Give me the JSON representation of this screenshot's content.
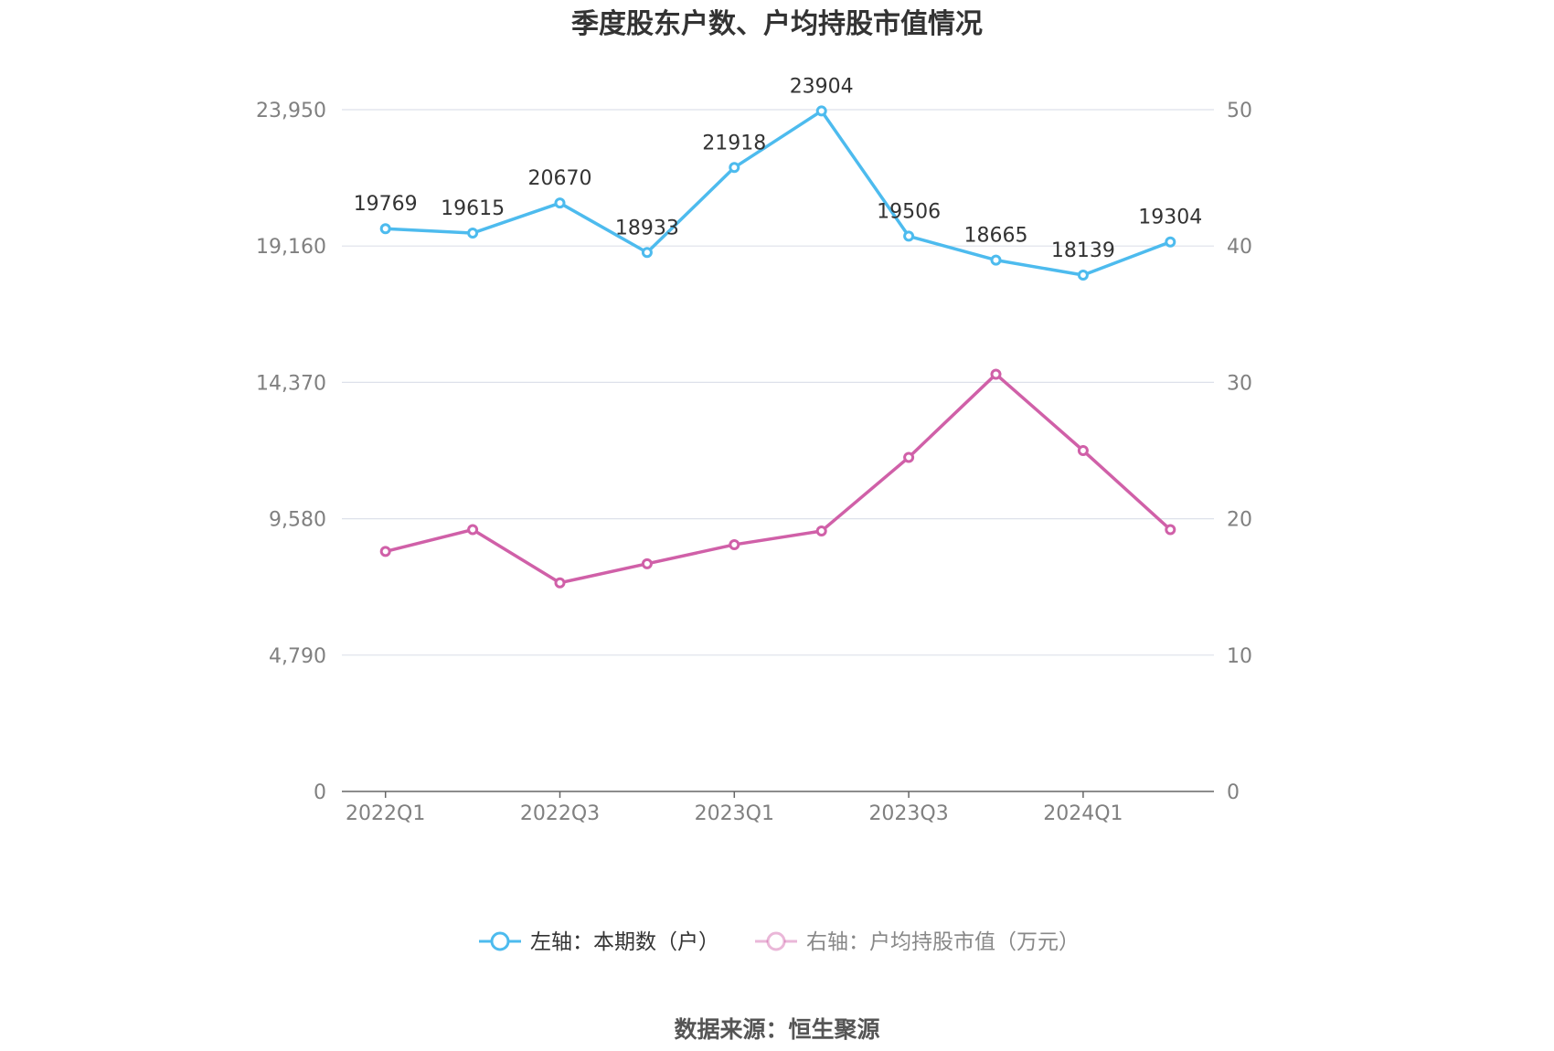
{
  "chart_data": {
    "type": "line",
    "title": "季度股东户数、户均持股市值情况",
    "x": [
      "2022Q1",
      "2022Q2",
      "2022Q3",
      "2022Q4",
      "2023Q1",
      "2023Q2",
      "2023Q3",
      "2023Q4",
      "2024Q1",
      "2024Q2"
    ],
    "x_tick_labels": [
      "2022Q1",
      "2022Q3",
      "2023Q1",
      "2023Q3",
      "2024Q1"
    ],
    "y_left": {
      "ticks": [
        "0",
        "4,790",
        "9,580",
        "14,370",
        "19,160",
        "23,950"
      ],
      "range": [
        0,
        23950
      ]
    },
    "y_right": {
      "ticks": [
        "0",
        "10",
        "20",
        "30",
        "40",
        "50"
      ],
      "range": [
        0,
        50
      ]
    },
    "series": [
      {
        "name": "左轴：本期数（户）",
        "axis": "left",
        "color": "#4dbbee",
        "values": [
          19769,
          19615,
          20670,
          18933,
          21918,
          23904,
          19506,
          18665,
          18139,
          19304
        ],
        "labels": [
          "19769",
          "19615",
          "20670",
          "18933",
          "21918",
          "23904",
          "19506",
          "18665",
          "18139",
          "19304"
        ]
      },
      {
        "name": "右轴：户均持股市值（万元）",
        "axis": "right",
        "color": "#d060a8",
        "values": [
          17.6,
          19.2,
          15.3,
          16.7,
          18.1,
          19.1,
          24.5,
          30.6,
          25.0,
          19.2
        ]
      }
    ],
    "grid": true,
    "legend_position": "bottom"
  },
  "source": "数据来源：恒生聚源"
}
